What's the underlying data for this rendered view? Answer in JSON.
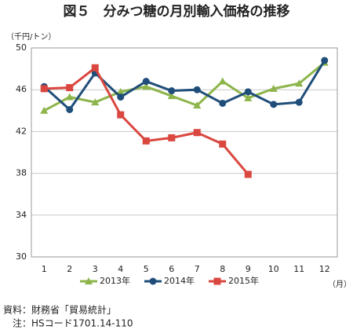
{
  "chart_data": {
    "type": "line",
    "title": "図５　分みつ糖の月別輸入価格の推移",
    "y_label": "（千円/トン）",
    "x_label": "（月）",
    "categories": [
      "1",
      "2",
      "3",
      "4",
      "5",
      "6",
      "7",
      "8",
      "9",
      "10",
      "11",
      "12"
    ],
    "series": [
      {
        "name": "2013年",
        "color": "#8db54b",
        "marker": "triangle",
        "values": [
          44.0,
          45.3,
          44.8,
          45.8,
          46.3,
          45.4,
          44.5,
          46.8,
          45.2,
          46.1,
          46.6,
          48.6
        ]
      },
      {
        "name": "2014年",
        "color": "#1f4e7a",
        "marker": "circle",
        "values": [
          46.3,
          44.1,
          47.6,
          45.3,
          46.8,
          45.9,
          46.0,
          44.7,
          45.8,
          44.6,
          44.8,
          48.8
        ]
      },
      {
        "name": "2015年",
        "color": "#d9473f",
        "marker": "square",
        "values": [
          46.1,
          46.2,
          48.1,
          43.6,
          41.1,
          41.4,
          41.9,
          40.8,
          37.9,
          null,
          null,
          null
        ]
      }
    ],
    "ylim": [
      30,
      50
    ],
    "yticks": [
      30,
      34,
      38,
      42,
      46,
      50
    ],
    "grid": true,
    "legend": "bottom",
    "notes": [
      "資料：財務省「貿易統計」",
      "　注：HSコード1701.14-110"
    ]
  }
}
